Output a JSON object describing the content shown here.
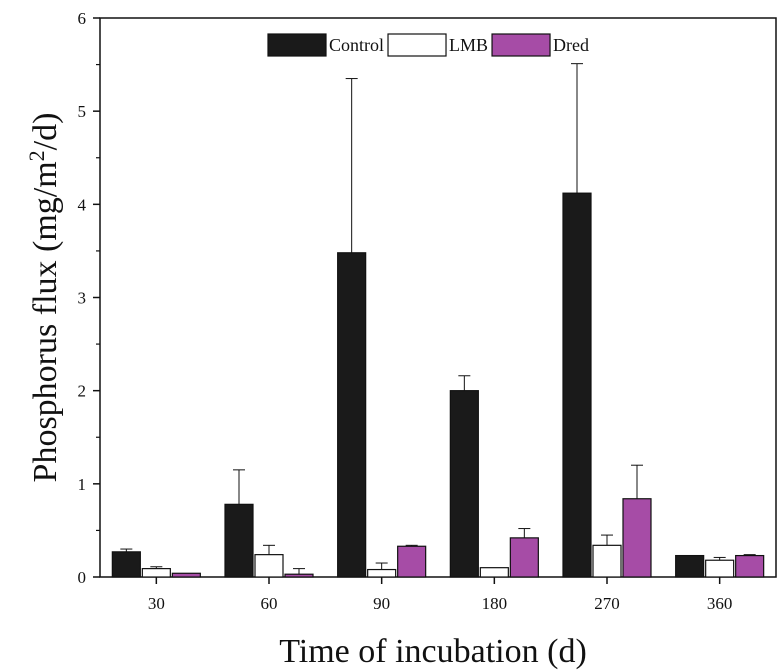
{
  "chart_data": {
    "type": "bar",
    "xlabel": "Time of incubation (d)",
    "ylabel_parts": [
      "Phosphorus flux (mg/m",
      "2",
      "/d)"
    ],
    "categories": [
      "30",
      "60",
      "90",
      "180",
      "270",
      "360"
    ],
    "ylim": [
      0,
      6
    ],
    "yticks": [
      "0",
      "1",
      "2",
      "3",
      "4",
      "5",
      "6"
    ],
    "grid": false,
    "legend_position": "top-center",
    "series": [
      {
        "name": "Control",
        "color": "#1a1a1a",
        "values": [
          0.27,
          0.78,
          3.48,
          2.0,
          4.12,
          0.23
        ],
        "errors": [
          0.03,
          0.37,
          1.87,
          0.16,
          1.39,
          0.0
        ]
      },
      {
        "name": "LMB",
        "color": "#ffffff",
        "values": [
          0.09,
          0.24,
          0.08,
          0.1,
          0.34,
          0.18
        ],
        "errors": [
          0.02,
          0.1,
          0.07,
          0.0,
          0.11,
          0.03
        ]
      },
      {
        "name": "Dred",
        "color": "#a64ca6",
        "values": [
          0.04,
          0.03,
          0.33,
          0.42,
          0.84,
          0.23
        ],
        "errors": [
          0.0,
          0.06,
          0.01,
          0.1,
          0.36,
          0.01
        ]
      }
    ]
  }
}
